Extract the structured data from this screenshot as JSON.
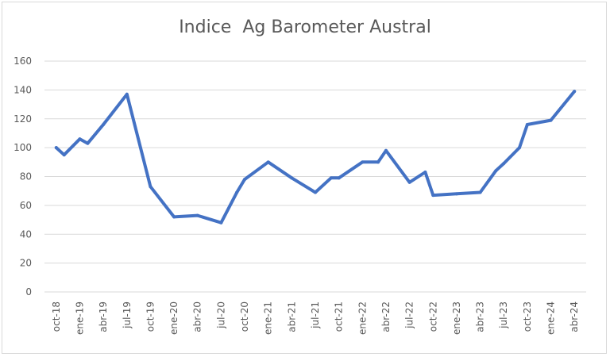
{
  "chart_data": {
    "type": "line",
    "title": "Indice  Ag Barometer Austral",
    "xlabel": "",
    "ylabel": "",
    "ylim": [
      0,
      160
    ],
    "yticks": [
      0,
      20,
      40,
      60,
      80,
      100,
      120,
      140,
      160
    ],
    "grid": true,
    "legend": "none",
    "x_labels": [
      "oct-18",
      "ene-19",
      "abr-19",
      "jul-19",
      "oct-19",
      "ene-20",
      "abr-20",
      "jul-20",
      "oct-20",
      "ene-21",
      "abr-21",
      "jul-21",
      "oct-21",
      "ene-22",
      "abr-22",
      "jul-22",
      "oct-22",
      "ene-23",
      "abr-23",
      "jul-23",
      "oct-23",
      "ene-24",
      "abr-24"
    ],
    "x": [
      "oct-18",
      "nov-18",
      "ene-19",
      "feb-19",
      "abr-19",
      "jul-19",
      "oct-19",
      "ene-20",
      "abr-20",
      "jul-20",
      "sep-20",
      "oct-20",
      "ene-21",
      "abr-21",
      "jul-21",
      "sep-21",
      "oct-21",
      "ene-22",
      "mar-22",
      "abr-22",
      "jul-22",
      "sep-22",
      "oct-22",
      "ene-23",
      "abr-23",
      "jun-23",
      "jul-23",
      "sep-23",
      "oct-23",
      "ene-24",
      "abr-24"
    ],
    "series": [
      {
        "color": "#4472c4",
        "values": [
          100,
          95,
          106,
          103,
          116,
          137,
          73,
          52,
          53,
          48,
          69,
          78,
          90,
          79,
          69,
          79,
          79,
          90,
          90,
          98,
          76,
          83,
          67,
          68,
          69,
          84,
          89,
          100,
          116,
          119,
          139
        ]
      }
    ]
  }
}
